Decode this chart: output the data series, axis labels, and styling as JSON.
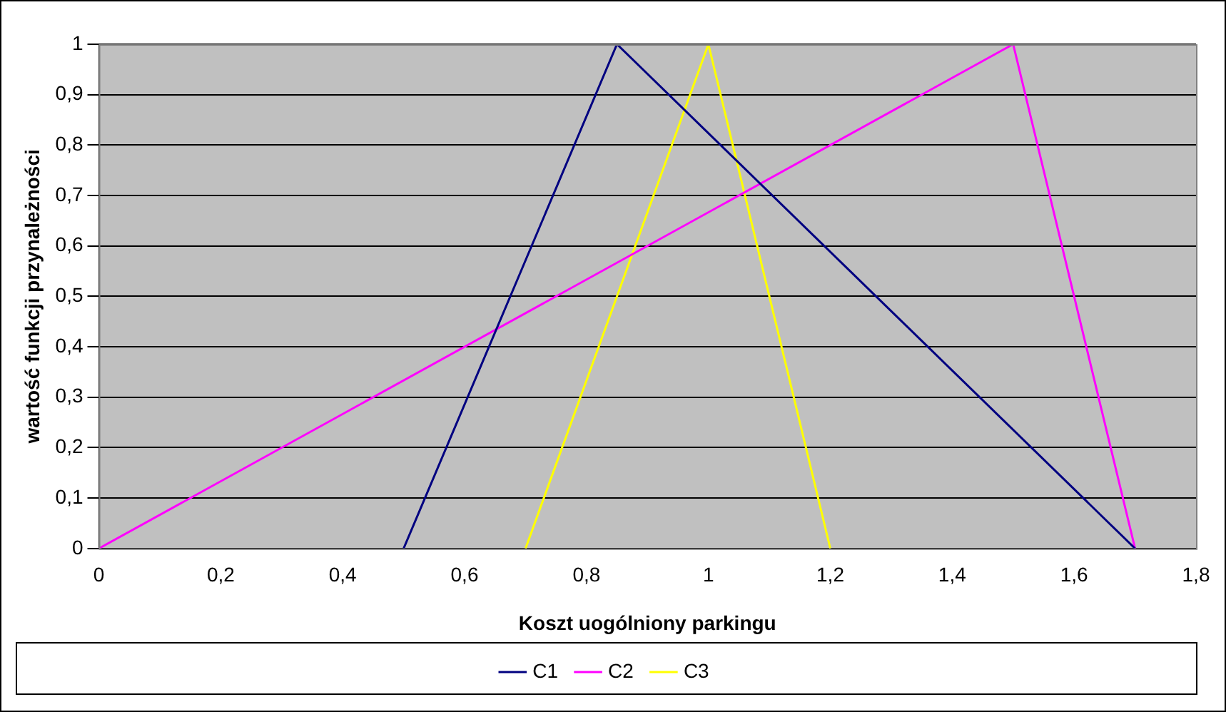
{
  "chart_data": {
    "type": "line",
    "xlabel": "Koszt uogólniony parkingu",
    "ylabel": "wartość funkcji przynależności",
    "series": [
      {
        "name": "C1",
        "color": "#000080",
        "x": [
          0.5,
          0.85,
          1.7
        ],
        "values": [
          0,
          1,
          0
        ]
      },
      {
        "name": "C2",
        "color": "#ff00ff",
        "x": [
          0,
          1.5,
          1.7
        ],
        "values": [
          0,
          1,
          0
        ]
      },
      {
        "name": "C3",
        "color": "#ffff00",
        "x": [
          0.7,
          1,
          1.2
        ],
        "values": [
          0,
          1,
          0
        ]
      }
    ],
    "xlim": [
      0,
      1.8
    ],
    "ylim": [
      0,
      1
    ],
    "xticks": [
      0,
      {
        "value": 0.2,
        "label": "0,2"
      },
      {
        "value": 0.4,
        "label": "0,4"
      },
      {
        "value": 0.6,
        "label": "0,6"
      },
      {
        "value": 0.8,
        "label": "0,8"
      },
      1,
      {
        "value": 1.2,
        "label": "1,2"
      },
      {
        "value": 1.4,
        "label": "1,4"
      },
      {
        "value": 1.6,
        "label": "1,6"
      },
      {
        "value": 1.8,
        "label": "1,8"
      }
    ],
    "yticks": [
      0,
      {
        "value": 0.1,
        "label": "0,1"
      },
      {
        "value": 0.2,
        "label": "0,2"
      },
      {
        "value": 0.3,
        "label": "0,3"
      },
      {
        "value": 0.4,
        "label": "0,4"
      },
      {
        "value": 0.5,
        "label": "0,5"
      },
      {
        "value": 0.6,
        "label": "0,6"
      },
      {
        "value": 0.7,
        "label": "0,7"
      },
      {
        "value": 0.8,
        "label": "0,8"
      },
      {
        "value": 0.9,
        "label": "0,9"
      },
      1
    ],
    "grid": "y",
    "legend": "bottom",
    "marker": "none",
    "line_style": "solid"
  }
}
